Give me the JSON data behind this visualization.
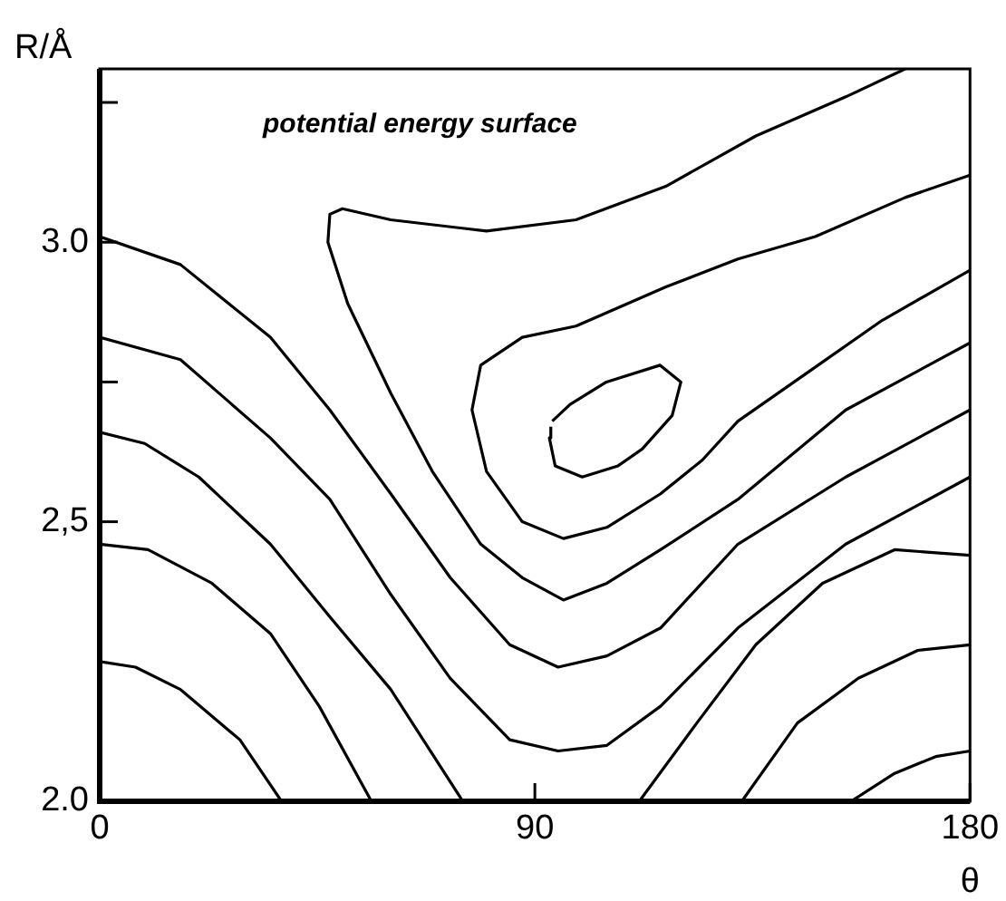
{
  "chart_data": {
    "type": "line",
    "xlabel": "θ",
    "ylabel": "R/Å",
    "annotations": [
      "potential energy surface"
    ],
    "xlim": [
      0,
      180
    ],
    "ylim": [
      2.0,
      3.31
    ],
    "xticks": [
      0,
      90,
      180
    ],
    "yticks": [
      {
        "value": 2.0,
        "label": "2.0"
      },
      {
        "value": 2.5,
        "label": "2,5"
      },
      {
        "value": 2.75,
        "label": null
      },
      {
        "value": 3.0,
        "label": "3.0"
      },
      {
        "value": 3.25,
        "label": null
      }
    ],
    "legend": false,
    "marker": "none",
    "grid": false,
    "series": [
      {
        "color": "#000000",
        "x": [
          0,
          7.4,
          16.7,
          29.0,
          37.6
        ],
        "values": [
          2.25,
          2.24,
          2.2,
          2.11,
          2.0
        ]
      },
      {
        "color": "#000000",
        "x": [
          0,
          10,
          23.2,
          35.3,
          45.4,
          56.2
        ],
        "values": [
          2.46,
          2.45,
          2.39,
          2.3,
          2.17,
          2.0
        ]
      },
      {
        "color": "#000000",
        "x": [
          0,
          9.3,
          20.5,
          35.3,
          47.6,
          60.2,
          75.1
        ],
        "values": [
          2.66,
          2.64,
          2.58,
          2.46,
          2.33,
          2.2,
          2.0
        ]
      },
      {
        "color": "#000000",
        "x": [
          0,
          16.7,
          35.3,
          47.6,
          60.2,
          72.5,
          84.8,
          94.8,
          104.9,
          116.0,
          132.0,
          154.3,
          180
        ],
        "values": [
          2.83,
          2.79,
          2.65,
          2.54,
          2.37,
          2.22,
          2.11,
          2.09,
          2.1,
          2.17,
          2.31,
          2.46,
          2.58
        ]
      },
      {
        "color": "#000000",
        "x": [
          0,
          16.7,
          35.3,
          47.6,
          60.2,
          72.5,
          84.8,
          94.8,
          104.9,
          116.0,
          132.0,
          154.3,
          180
        ],
        "values": [
          3.01,
          2.96,
          2.83,
          2.7,
          2.55,
          2.4,
          2.28,
          2.24,
          2.26,
          2.31,
          2.46,
          2.58,
          2.7
        ]
      },
      {
        "color": "#000000",
        "x": [
          166.6,
          154.3,
          135.7,
          117.1,
          98.5,
          80.0,
          60.2,
          50.2,
          47.6,
          47.2,
          51.3,
          60.2,
          68.8,
          78.8,
          87.4,
          95.9,
          104.9,
          116.0,
          132.0,
          154.3,
          180
        ],
        "values": [
          3.31,
          3.26,
          3.19,
          3.1,
          3.04,
          3.02,
          3.04,
          3.06,
          3.05,
          3.0,
          2.89,
          2.73,
          2.59,
          2.46,
          2.4,
          2.36,
          2.39,
          2.45,
          2.54,
          2.7,
          2.82
        ]
      },
      {
        "color": "#000000",
        "x": [
          180,
          166.6,
          148.0,
          132.0,
          117.1,
          98.5,
          87.4,
          78.8,
          77.0,
          80.0,
          87.4,
          95.9,
          104.9,
          116.0,
          124.6,
          132.0,
          146.9,
          161.8,
          180
        ],
        "values": [
          3.12,
          3.08,
          3.01,
          2.97,
          2.92,
          2.85,
          2.83,
          2.78,
          2.7,
          2.59,
          2.5,
          2.47,
          2.49,
          2.55,
          2.61,
          2.68,
          2.77,
          2.86,
          2.95
        ]
      },
      {
        "color": "#000000",
        "x": [
          111.6,
          123.5,
          135.7,
          149.5,
          164.4,
          180
        ],
        "values": [
          2.0,
          2.14,
          2.28,
          2.39,
          2.45,
          2.44
        ]
      },
      {
        "color": "#000000",
        "x": [
          132.8,
          144.3,
          156.9,
          169.2,
          180
        ],
        "values": [
          2.0,
          2.14,
          2.22,
          2.27,
          2.28
        ]
      },
      {
        "color": "#000000",
        "x": [
          155.4,
          164.4,
          172.9,
          180
        ],
        "values": [
          2.0,
          2.05,
          2.08,
          2.09
        ]
      },
      {
        "color": "#000000",
        "x": [
          93.6,
          97.3,
          104.8,
          115.9,
          120.2,
          118.4,
          112.2,
          107.2,
          99.8,
          94.2,
          93.0,
          93.3
        ],
        "values": [
          2.68,
          2.71,
          2.75,
          2.78,
          2.75,
          2.69,
          2.63,
          2.6,
          2.58,
          2.6,
          2.65,
          2.67
        ]
      }
    ]
  }
}
